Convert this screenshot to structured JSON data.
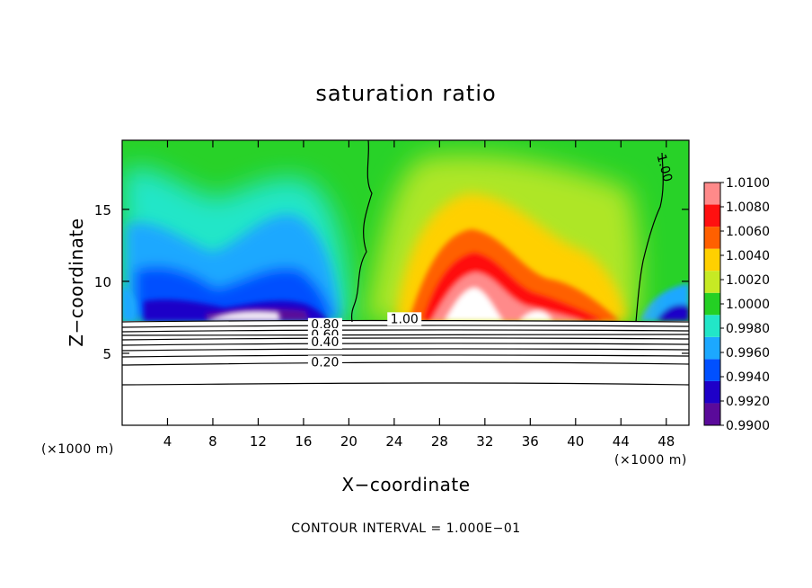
{
  "chart_data": {
    "type": "heatmap",
    "title": "saturation ratio",
    "xlabel": "X−coordinate",
    "ylabel": "Z−coordinate",
    "x_unit": "(×1000 m)",
    "y_unit": "(×1000 m)",
    "footer": "CONTOUR INTERVAL = 1.000E−01",
    "xlim": [
      0,
      50
    ],
    "ylim": [
      0,
      19.8
    ],
    "xticks": [
      4,
      8,
      12,
      16,
      20,
      24,
      28,
      32,
      36,
      40,
      44,
      48
    ],
    "yticks": [
      5,
      10,
      15
    ],
    "colorbar": {
      "levels": [
        0.99,
        0.992,
        0.994,
        0.996,
        0.998,
        1.0,
        1.002,
        1.004,
        1.006,
        1.008,
        1.01
      ],
      "tick_labels": [
        "0.9900",
        "0.9920",
        "0.9940",
        "0.9960",
        "0.9980",
        "1.0000",
        "1.0020",
        "1.0040",
        "1.0060",
        "1.0080",
        "1.0100"
      ],
      "colors": [
        "#5a0a9a",
        "#1e00c8",
        "#0050ff",
        "#1ca8ff",
        "#22e6c8",
        "#24d024",
        "#c6ea24",
        "#ffd000",
        "#ff6000",
        "#ff1010",
        "#ff8a8a"
      ]
    },
    "contour_labels": [
      {
        "text": "1.00",
        "x": 47.5,
        "y": 17.8
      },
      {
        "text": "1.00",
        "x": 24.9,
        "y": 7.1
      },
      {
        "text": "0.80",
        "x": 17.9,
        "y": 6.7
      },
      {
        "text": "0.60",
        "x": 17.9,
        "y": 6.0
      },
      {
        "text": "0.40",
        "x": 17.9,
        "y": 5.5
      },
      {
        "text": "0.20",
        "x": 17.9,
        "y": 4.1
      }
    ]
  }
}
